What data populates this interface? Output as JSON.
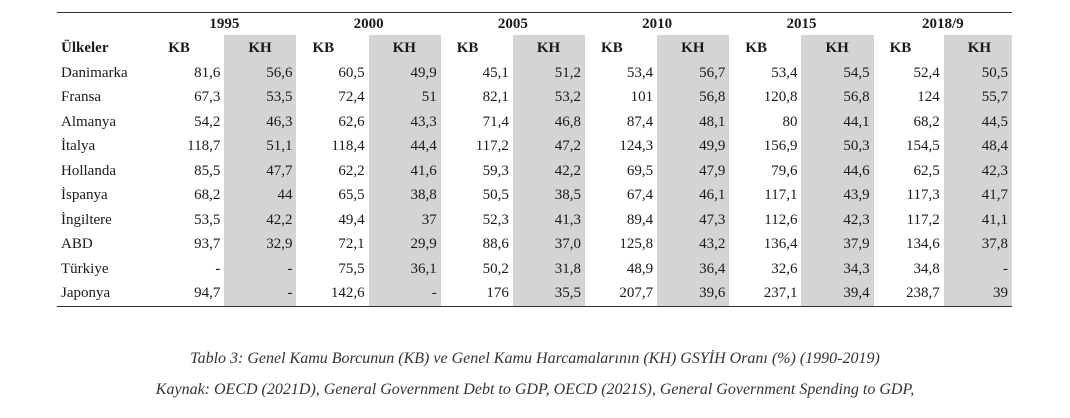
{
  "table": {
    "years": [
      "1995",
      "2000",
      "2005",
      "2010",
      "2015",
      "2018/9"
    ],
    "country_header": "Ülkeler",
    "kb_label": "KB",
    "kh_label": "KH",
    "rows": [
      {
        "country": "Danimarka",
        "values": [
          "81,6",
          "56,6",
          "60,5",
          "49,9",
          "45,1",
          "51,2",
          "53,4",
          "56,7",
          "53,4",
          "54,5",
          "52,4",
          "50,5"
        ]
      },
      {
        "country": "Fransa",
        "values": [
          "67,3",
          "53,5",
          "72,4",
          "51",
          "82,1",
          "53,2",
          "101",
          "56,8",
          "120,8",
          "56,8",
          "124",
          "55,7"
        ]
      },
      {
        "country": "Almanya",
        "values": [
          "54,2",
          "46,3",
          "62,6",
          "43,3",
          "71,4",
          "46,8",
          "87,4",
          "48,1",
          "80",
          "44,1",
          "68,2",
          "44,5"
        ]
      },
      {
        "country": "İtalya",
        "values": [
          "118,7",
          "51,1",
          "118,4",
          "44,4",
          "117,2",
          "47,2",
          "124,3",
          "49,9",
          "156,9",
          "50,3",
          "154,5",
          "48,4"
        ]
      },
      {
        "country": "Hollanda",
        "values": [
          "85,5",
          "47,7",
          "62,2",
          "41,6",
          "59,3",
          "42,2",
          "69,5",
          "47,9",
          "79,6",
          "44,6",
          "62,5",
          "42,3"
        ]
      },
      {
        "country": "İspanya",
        "values": [
          "68,2",
          "44",
          "65,5",
          "38,8",
          "50,5",
          "38,5",
          "67,4",
          "46,1",
          "117,1",
          "43,9",
          "117,3",
          "41,7"
        ]
      },
      {
        "country": "İngiltere",
        "values": [
          "53,5",
          "42,2",
          "49,4",
          "37",
          "52,3",
          "41,3",
          "89,4",
          "47,3",
          "112,6",
          "42,3",
          "117,2",
          "41,1"
        ]
      },
      {
        "country": "ABD",
        "values": [
          "93,7",
          "32,9",
          "72,1",
          "29,9",
          "88,6",
          "37,0",
          "125,8",
          "43,2",
          "136,4",
          "37,9",
          "134,6",
          "37,8"
        ]
      },
      {
        "country": "Türkiye",
        "values": [
          "-",
          "-",
          "75,5",
          "36,1",
          "50,2",
          "31,8",
          "48,9",
          "36,4",
          "32,6",
          "34,3",
          "34,8",
          "-"
        ]
      },
      {
        "country": "Japonya",
        "values": [
          "94,7",
          "-",
          "142,6",
          "-",
          "176",
          "35,5",
          "207,7",
          "39,6",
          "237,1",
          "39,4",
          "238,7",
          "39"
        ]
      }
    ]
  },
  "caption": "Tablo 3: Genel Kamu Borcunun (KB) ve Genel Kamu Harcamalarının (KH) GSYİH Oranı (%) (1990-2019)",
  "source": "Kaynak: OECD (2021D), General Government Debt to GDP, OECD (2021S), General Government Spending to GDP,"
}
